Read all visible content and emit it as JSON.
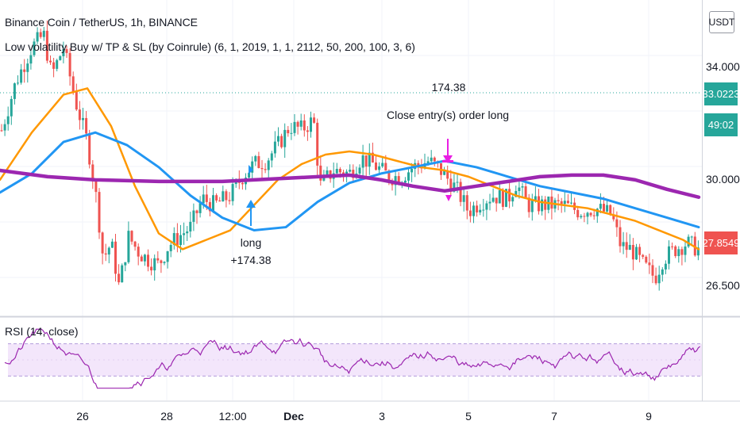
{
  "header": {
    "symbol_line": "Binance Coin / TetherUS, 1h, BINANCE",
    "strategy_line": "Low volatility Buy w/ TP & SL (by Coinrule) (6, 1, 2019, 1, 1, 2112, 50, 200, 100, 3, 6)"
  },
  "rsi": {
    "label": "RSI (14, close)"
  },
  "currency_button": "USDT",
  "price_axis": {
    "labels": [
      "34.0000",
      "30.0000",
      "26.5000"
    ],
    "partial_labels": [
      "3",
      "3"
    ],
    "price_tags": [
      {
        "value": "33.0223",
        "color": "#26a69a"
      },
      {
        "value": "49:02",
        "color": "#26a69a"
      },
      {
        "value": "27.8549",
        "color": "#ef5350"
      }
    ]
  },
  "time_axis": {
    "labels": [
      "26",
      "28",
      "12:00",
      "Dec",
      "3",
      "5",
      "7",
      "9"
    ]
  },
  "annotations": {
    "trade_pnl": "174.38",
    "close_text": "Close entry(s) order long",
    "long_label": "long",
    "long_pnl": "+174.38"
  },
  "colors": {
    "up_candle": "#26a69a",
    "down_candle": "#ef5350",
    "ma_fast": "#ff9800",
    "ma_mid": "#2196f3",
    "ma_slow": "#9c27b0",
    "entry_arrow": "#2196f3",
    "exit_arrow": "#e91ee3",
    "rsi_line": "#9c27b0",
    "rsi_band": "#f3e6fb"
  },
  "chart_data": {
    "type": "line",
    "title": "Binance Coin / TetherUS, 1h, BINANCE",
    "price_range": [
      25.8,
      35.8
    ],
    "rsi_range": [
      0,
      100
    ],
    "series": [
      {
        "name": "",
        "color": "#ff9800",
        "points": [
          [
            0,
            30.1
          ],
          [
            40,
            31.6
          ],
          [
            80,
            32.8
          ],
          [
            110,
            33.0
          ],
          [
            140,
            31.8
          ],
          [
            170,
            29.9
          ],
          [
            200,
            28.4
          ],
          [
            230,
            27.9
          ],
          [
            260,
            28.2
          ],
          [
            290,
            28.5
          ],
          [
            320,
            29.3
          ],
          [
            350,
            30.1
          ],
          [
            380,
            30.6
          ],
          [
            410,
            30.9
          ],
          [
            440,
            31.0
          ],
          [
            470,
            30.9
          ],
          [
            500,
            30.7
          ],
          [
            530,
            30.5
          ],
          [
            560,
            30.4
          ],
          [
            590,
            30.2
          ],
          [
            620,
            29.9
          ],
          [
            650,
            29.6
          ],
          [
            680,
            29.4
          ],
          [
            710,
            29.3
          ],
          [
            740,
            29.2
          ],
          [
            770,
            29.0
          ],
          [
            800,
            28.8
          ],
          [
            830,
            28.5
          ],
          [
            860,
            28.2
          ],
          [
            880,
            27.9
          ]
        ]
      },
      {
        "name": "",
        "color": "#2196f3",
        "points": [
          [
            0,
            29.7
          ],
          [
            40,
            30.3
          ],
          [
            80,
            31.3
          ],
          [
            120,
            31.6
          ],
          [
            160,
            31.2
          ],
          [
            200,
            30.5
          ],
          [
            240,
            29.6
          ],
          [
            280,
            28.9
          ],
          [
            320,
            28.5
          ],
          [
            360,
            28.6
          ],
          [
            400,
            29.4
          ],
          [
            440,
            30.0
          ],
          [
            480,
            30.3
          ],
          [
            520,
            30.5
          ],
          [
            560,
            30.7
          ],
          [
            600,
            30.5
          ],
          [
            640,
            30.2
          ],
          [
            680,
            29.9
          ],
          [
            720,
            29.7
          ],
          [
            760,
            29.5
          ],
          [
            800,
            29.2
          ],
          [
            840,
            28.9
          ],
          [
            880,
            28.6
          ]
        ]
      },
      {
        "name": "",
        "color": "#9c27b0",
        "points": [
          [
            0,
            30.4
          ],
          [
            60,
            30.2
          ],
          [
            120,
            30.1
          ],
          [
            200,
            30.05
          ],
          [
            280,
            30.05
          ],
          [
            360,
            30.15
          ],
          [
            440,
            30.25
          ],
          [
            480,
            30.1
          ],
          [
            520,
            29.9
          ],
          [
            560,
            29.75
          ],
          [
            600,
            29.9
          ],
          [
            640,
            30.05
          ],
          [
            680,
            30.2
          ],
          [
            720,
            30.25
          ],
          [
            760,
            30.25
          ],
          [
            800,
            30.1
          ],
          [
            840,
            29.8
          ],
          [
            880,
            29.55
          ]
        ]
      }
    ],
    "annotations": [
      "174.38",
      "Close entry(s) order long",
      "long",
      "+174.38"
    ]
  }
}
